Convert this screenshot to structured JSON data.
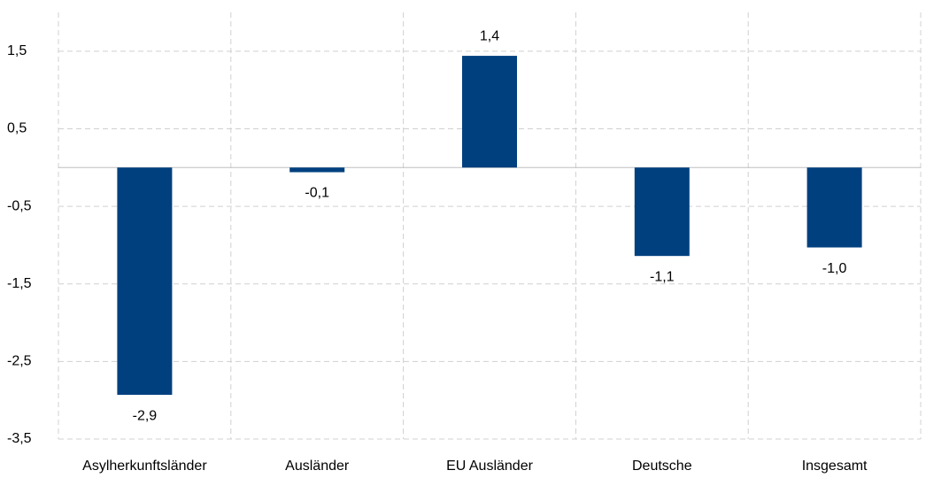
{
  "chart_data": {
    "type": "bar",
    "categories": [
      "Asylherkunftsländer",
      "Ausländer",
      "EU Ausländer",
      "Deutsche",
      "Insgesamt"
    ],
    "values": [
      -2.93,
      -0.06,
      1.44,
      -1.14,
      -1.03
    ],
    "value_labels": [
      "-2,9",
      "-0,1",
      "1,4",
      "-1,1",
      "-1,0"
    ],
    "color": "#00407f",
    "ylim": [
      -3.5,
      2.0
    ],
    "yticks": [
      {
        "value": -3.5,
        "label": "-3,5"
      },
      {
        "value": -2.5,
        "label": "-2,5"
      },
      {
        "value": -1.5,
        "label": "-1,5"
      },
      {
        "value": -0.5,
        "label": "-0,5"
      },
      {
        "value": 0.5,
        "label": "0,5"
      },
      {
        "value": 1.5,
        "label": "1,5"
      }
    ],
    "grid": true
  }
}
